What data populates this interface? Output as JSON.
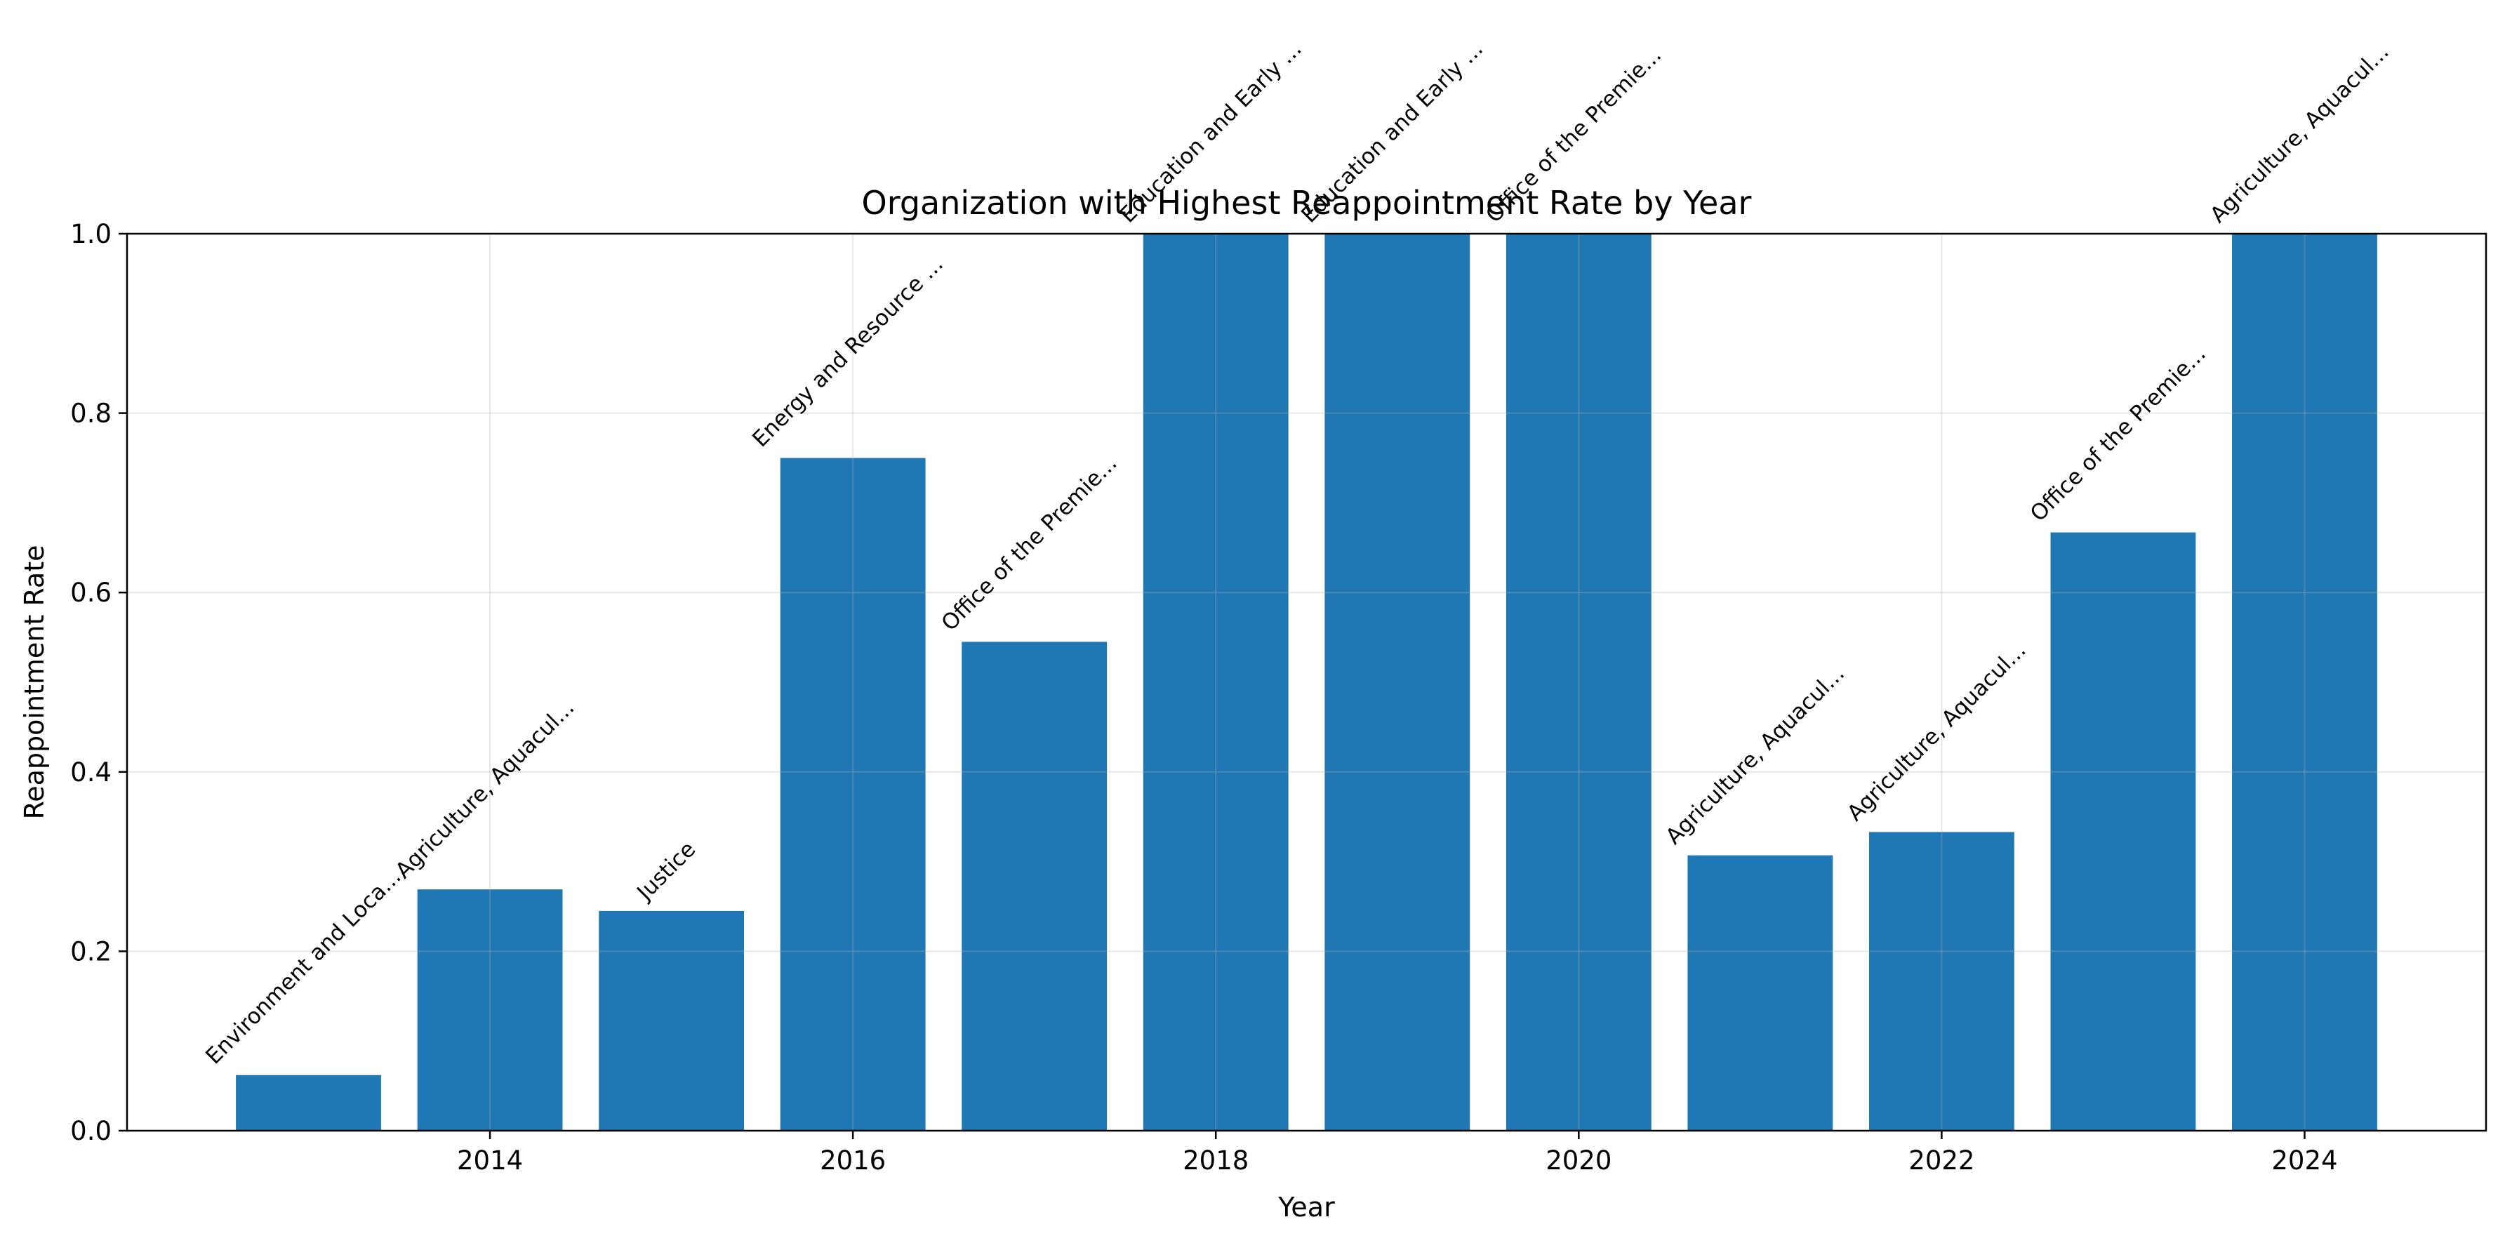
{
  "chart_data": {
    "type": "bar",
    "title": "Organization with Highest Reappointment Rate by Year",
    "xlabel": "Year",
    "ylabel": "Reappointment Rate",
    "x": [
      2013,
      2014,
      2015,
      2016,
      2017,
      2018,
      2019,
      2020,
      2021,
      2022,
      2023,
      2024
    ],
    "values": [
      0.062,
      0.269,
      0.245,
      0.75,
      0.545,
      1.0,
      1.0,
      1.0,
      0.307,
      0.333,
      0.667,
      1.0
    ],
    "bar_labels": [
      "Environment and Loca...",
      "Agriculture, Aquacul...",
      "Justice",
      "Energy and Resource ...",
      "Office of the Premie...",
      "Education and Early ...",
      "Education and Early ...",
      "Office of the Premie...",
      "Agriculture, Aquacul...",
      "Agriculture, Aquacul...",
      "Office of the Premie...",
      "Agriculture, Aquacul..."
    ],
    "xlim": [
      2012.0,
      2025.0
    ],
    "ylim": [
      0,
      1.0
    ],
    "xticks": [
      2014,
      2016,
      2018,
      2020,
      2022,
      2024
    ],
    "yticks": [
      0.0,
      0.2,
      0.4,
      0.6,
      0.8,
      1.0
    ],
    "ytick_labels": [
      "0.0",
      "0.2",
      "0.4",
      "0.6",
      "0.8",
      "1.0"
    ],
    "bar_color": "#1f77b4",
    "grid": true
  }
}
